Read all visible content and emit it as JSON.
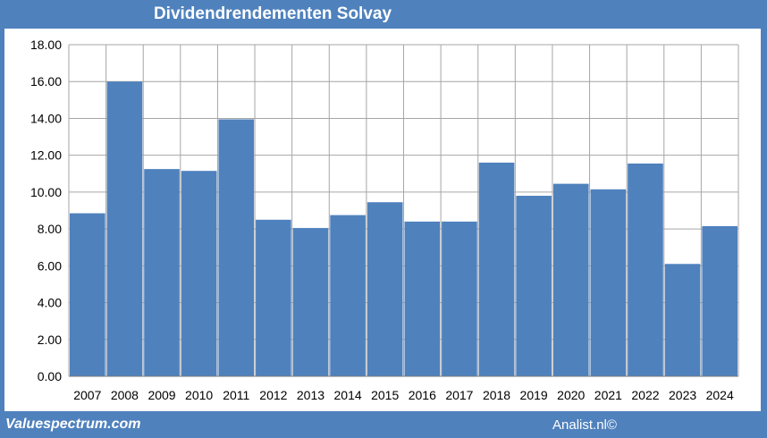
{
  "chart_data": {
    "type": "bar",
    "title": "Dividendrendementen Solvay",
    "categories": [
      "2007",
      "2008",
      "2009",
      "2010",
      "2011",
      "2012",
      "2013",
      "2014",
      "2015",
      "2016",
      "2017",
      "2018",
      "2019",
      "2020",
      "2021",
      "2022",
      "2023",
      "2024"
    ],
    "values": [
      8.85,
      16.0,
      11.25,
      11.15,
      13.95,
      8.5,
      8.05,
      8.75,
      9.45,
      8.4,
      8.4,
      11.6,
      9.8,
      10.45,
      10.15,
      11.55,
      6.1,
      8.15
    ],
    "ylim": [
      0,
      18
    ],
    "yticks": [
      "0.00",
      "2.00",
      "4.00",
      "6.00",
      "8.00",
      "10.00",
      "12.00",
      "14.00",
      "16.00",
      "18.00"
    ],
    "xlabel": "",
    "ylabel": "",
    "grid": true,
    "bar_color": "#4f81bd",
    "grid_color": "#a6a6a6"
  },
  "footer": {
    "source_left": "Valuespectrum.com",
    "source_right": "Analist.nl©"
  },
  "colors": {
    "background": "#4f81bd",
    "plot_background": "#ffffff"
  }
}
